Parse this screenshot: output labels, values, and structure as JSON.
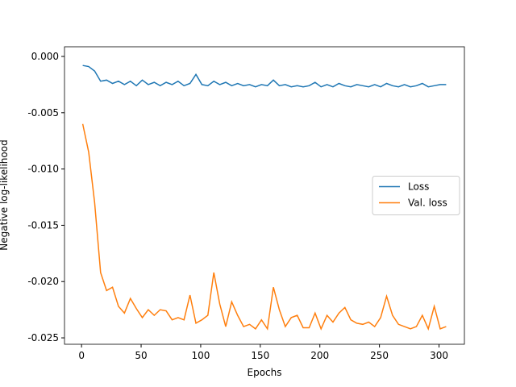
{
  "chart_data": {
    "type": "line",
    "xlabel": "Epochs",
    "ylabel": "Negative log-likelihood",
    "x": [
      1,
      6,
      11,
      16,
      21,
      26,
      31,
      36,
      41,
      46,
      51,
      56,
      61,
      66,
      71,
      76,
      81,
      86,
      91,
      96,
      101,
      106,
      111,
      116,
      121,
      126,
      131,
      136,
      141,
      146,
      151,
      156,
      161,
      166,
      171,
      176,
      181,
      186,
      191,
      196,
      201,
      206,
      211,
      216,
      221,
      226,
      231,
      236,
      241,
      246,
      251,
      256,
      261,
      266,
      271,
      276,
      281,
      286,
      291,
      296,
      301,
      306
    ],
    "series": [
      {
        "name": "Loss",
        "color": "#1f77b4",
        "values": [
          -0.0008,
          -0.0009,
          -0.0013,
          -0.0022,
          -0.0021,
          -0.0024,
          -0.0022,
          -0.0025,
          -0.0022,
          -0.0026,
          -0.0021,
          -0.0025,
          -0.0023,
          -0.0026,
          -0.0023,
          -0.0025,
          -0.0022,
          -0.0026,
          -0.0024,
          -0.0016,
          -0.0025,
          -0.0026,
          -0.0022,
          -0.0025,
          -0.0023,
          -0.0026,
          -0.0024,
          -0.0026,
          -0.0025,
          -0.0027,
          -0.0025,
          -0.0026,
          -0.0021,
          -0.0026,
          -0.0025,
          -0.0027,
          -0.0026,
          -0.0027,
          -0.0026,
          -0.0023,
          -0.0027,
          -0.0025,
          -0.0027,
          -0.0024,
          -0.0026,
          -0.0027,
          -0.0025,
          -0.0026,
          -0.0027,
          -0.0025,
          -0.0027,
          -0.0024,
          -0.0026,
          -0.0027,
          -0.0025,
          -0.0027,
          -0.0026,
          -0.0024,
          -0.0027,
          -0.0026,
          -0.0025,
          -0.0025
        ]
      },
      {
        "name": "Val. loss",
        "color": "#ff7f0e",
        "values": [
          -0.006,
          -0.0085,
          -0.013,
          -0.0192,
          -0.0208,
          -0.0205,
          -0.0222,
          -0.0228,
          -0.0215,
          -0.0224,
          -0.0232,
          -0.0225,
          -0.023,
          -0.0225,
          -0.0226,
          -0.0234,
          -0.0232,
          -0.0234,
          -0.0212,
          -0.0237,
          -0.0234,
          -0.023,
          -0.0192,
          -0.022,
          -0.024,
          -0.0218,
          -0.023,
          -0.024,
          -0.0238,
          -0.0242,
          -0.0234,
          -0.0242,
          -0.0205,
          -0.0225,
          -0.024,
          -0.0232,
          -0.023,
          -0.0241,
          -0.0241,
          -0.0228,
          -0.0242,
          -0.023,
          -0.0236,
          -0.0228,
          -0.0223,
          -0.0234,
          -0.0237,
          -0.0238,
          -0.0236,
          -0.024,
          -0.0232,
          -0.0213,
          -0.023,
          -0.0238,
          -0.024,
          -0.0242,
          -0.024,
          -0.023,
          -0.0242,
          -0.0222,
          -0.0242,
          -0.024
        ]
      }
    ],
    "xlim": [
      -14.3,
      321.3
    ],
    "ylim": [
      -0.02557,
      0.00086
    ],
    "xticks": [
      0,
      50,
      100,
      150,
      200,
      250,
      300
    ],
    "yticks": [
      {
        "value": 0,
        "label": "0.000"
      },
      {
        "value": -0.005,
        "label": "-0.005"
      },
      {
        "value": -0.01,
        "label": "-0.010"
      },
      {
        "value": -0.015,
        "label": "-0.015"
      },
      {
        "value": -0.02,
        "label": "-0.020"
      },
      {
        "value": -0.025,
        "label": "-0.025"
      }
    ],
    "legend": "center right"
  }
}
